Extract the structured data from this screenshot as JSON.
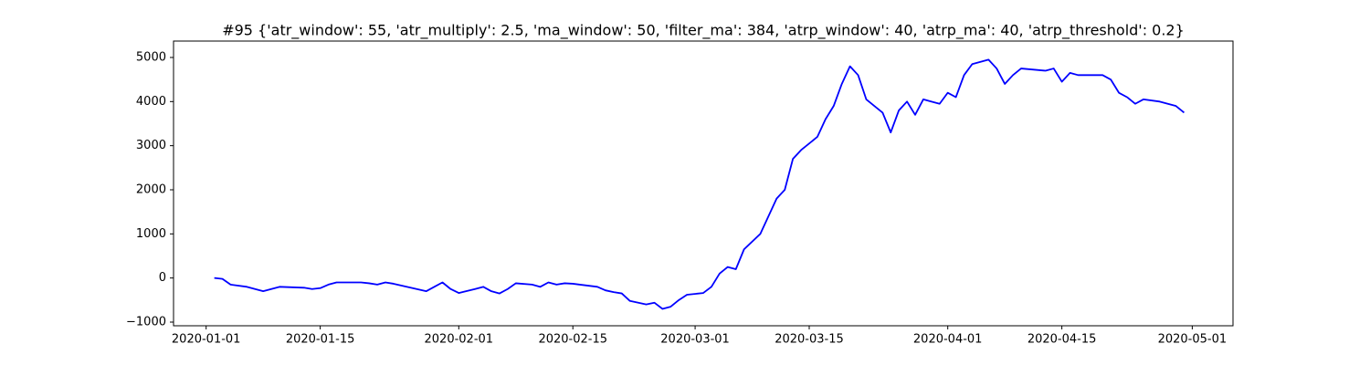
{
  "chart_data": {
    "type": "line",
    "title": "#95 {'atr_window': 55, 'atr_multiply': 2.5, 'ma_window': 50, 'filter_ma': 384, 'atrp_window': 40, 'atrp_ma': 40, 'atrp_threshold': 0.2}",
    "color": "#0000ff",
    "x": [
      "2020-01-02",
      "2020-01-03",
      "2020-01-04",
      "2020-01-06",
      "2020-01-07",
      "2020-01-08",
      "2020-01-09",
      "2020-01-10",
      "2020-01-13",
      "2020-01-14",
      "2020-01-15",
      "2020-01-16",
      "2020-01-17",
      "2020-01-20",
      "2020-01-21",
      "2020-01-22",
      "2020-01-23",
      "2020-01-24",
      "2020-01-28",
      "2020-01-29",
      "2020-01-30",
      "2020-01-31",
      "2020-02-01",
      "2020-02-03",
      "2020-02-04",
      "2020-02-05",
      "2020-02-06",
      "2020-02-07",
      "2020-02-08",
      "2020-02-10",
      "2020-02-11",
      "2020-02-12",
      "2020-02-13",
      "2020-02-14",
      "2020-02-15",
      "2020-02-18",
      "2020-02-19",
      "2020-02-20",
      "2020-02-21",
      "2020-02-22",
      "2020-02-24",
      "2020-02-25",
      "2020-02-26",
      "2020-02-27",
      "2020-02-28",
      "2020-02-29",
      "2020-03-02",
      "2020-03-03",
      "2020-03-04",
      "2020-03-05",
      "2020-03-06",
      "2020-03-07",
      "2020-03-09",
      "2020-03-10",
      "2020-03-11",
      "2020-03-12",
      "2020-03-13",
      "2020-03-14",
      "2020-03-16",
      "2020-03-17",
      "2020-03-18",
      "2020-03-19",
      "2020-03-20",
      "2020-03-21",
      "2020-03-22",
      "2020-03-24",
      "2020-03-25",
      "2020-03-26",
      "2020-03-27",
      "2020-03-28",
      "2020-03-29",
      "2020-03-31",
      "2020-04-01",
      "2020-04-02",
      "2020-04-03",
      "2020-04-04",
      "2020-04-06",
      "2020-04-07",
      "2020-04-08",
      "2020-04-09",
      "2020-04-10",
      "2020-04-13",
      "2020-04-14",
      "2020-04-15",
      "2020-04-16",
      "2020-04-17",
      "2020-04-20",
      "2020-04-21",
      "2020-04-22",
      "2020-04-23",
      "2020-04-24",
      "2020-04-25",
      "2020-04-27",
      "2020-04-28",
      "2020-04-29",
      "2020-04-30"
    ],
    "values": [
      0,
      -20,
      -150,
      -200,
      -250,
      -300,
      -250,
      -200,
      -220,
      -250,
      -230,
      -150,
      -100,
      -100,
      -120,
      -150,
      -100,
      -130,
      -300,
      -200,
      -100,
      -250,
      -340,
      -250,
      -200,
      -300,
      -350,
      -250,
      -120,
      -150,
      -200,
      -100,
      -150,
      -120,
      -130,
      -200,
      -280,
      -320,
      -350,
      -520,
      -600,
      -560,
      -700,
      -650,
      -500,
      -380,
      -340,
      -200,
      100,
      250,
      200,
      650,
      1000,
      1400,
      1800,
      2000,
      2700,
      2900,
      3200,
      3600,
      3900,
      4400,
      4800,
      4600,
      4050,
      3750,
      3300,
      3800,
      4000,
      3700,
      4050,
      3950,
      4200,
      4100,
      4600,
      4850,
      4950,
      4750,
      4400,
      4600,
      4750,
      4700,
      4750,
      4450,
      4650,
      4600,
      4600,
      4500,
      4200,
      4100,
      3950,
      4050,
      4000,
      3950,
      3900,
      3750
    ],
    "xlim": [
      "2019-12-28",
      "2020-05-06"
    ],
    "xticks": [
      "2020-01-01",
      "2020-01-15",
      "2020-02-01",
      "2020-02-15",
      "2020-03-01",
      "2020-03-15",
      "2020-04-01",
      "2020-04-15",
      "2020-05-01"
    ],
    "ylim": [
      -1083,
      5372
    ],
    "yticks": [
      {
        "value": -1000,
        "label": "−1000"
      },
      0,
      1000,
      2000,
      3000,
      4000,
      5000
    ]
  }
}
